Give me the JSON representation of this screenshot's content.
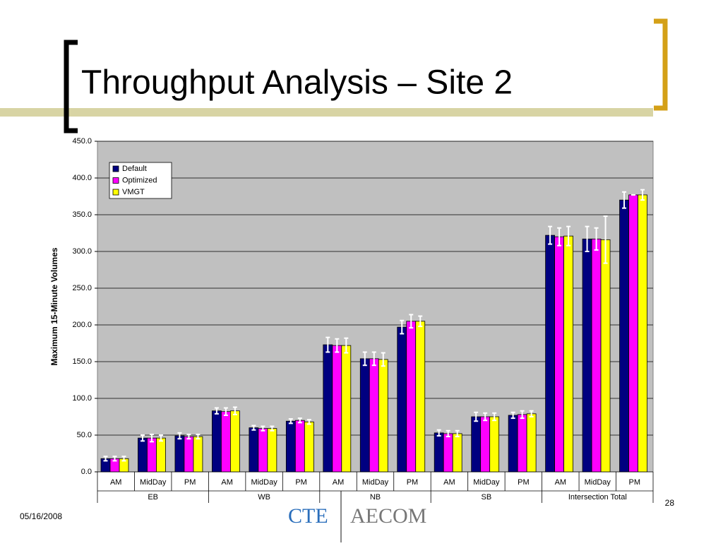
{
  "header": {
    "title": "Throughput Analysis – Site 2"
  },
  "chart_data": {
    "type": "bar",
    "y_label": "Maximum 15-Minute Volumes",
    "category_groups": [
      "EB",
      "WB",
      "NB",
      "SB",
      "Intersection Total"
    ],
    "categories": [
      "AM",
      "MidDay",
      "PM",
      "AM",
      "MidDay",
      "PM",
      "AM",
      "MidDay",
      "PM",
      "AM",
      "MidDay",
      "PM",
      "AM",
      "MidDay",
      "PM"
    ],
    "series": [
      {
        "name": "Default",
        "color": "#000080",
        "values": [
          18,
          46,
          49,
          83,
          60,
          69,
          173,
          154,
          197,
          53,
          75,
          77,
          322,
          317,
          370
        ],
        "errors": [
          3,
          4,
          4,
          4,
          3,
          3,
          10,
          9,
          9,
          4,
          6,
          4,
          12,
          17,
          11
        ]
      },
      {
        "name": "Optimized",
        "color": "#ff00ff",
        "values": [
          18,
          46,
          48,
          82,
          59,
          70,
          172,
          154,
          205,
          52,
          75,
          78,
          320,
          317,
          377
        ],
        "errors": [
          3,
          5,
          3,
          5,
          3,
          3,
          9,
          9,
          9,
          4,
          5,
          5,
          12,
          15,
          0
        ]
      },
      {
        "name": "VMGT",
        "color": "#ffff00",
        "values": [
          18,
          46,
          48,
          83,
          59,
          68,
          172,
          153,
          205,
          52,
          75,
          79,
          321,
          316,
          377
        ],
        "errors": [
          3,
          4,
          3,
          5,
          3,
          3,
          10,
          9,
          7,
          4,
          5,
          4,
          13,
          32,
          7
        ]
      }
    ],
    "ylim": [
      0,
      450
    ],
    "yticks": [
      {
        "value": 0,
        "label": "0.0"
      },
      {
        "value": 50,
        "label": "50.0"
      },
      {
        "value": 100,
        "label": "100.0"
      },
      {
        "value": 150,
        "label": "150.0"
      },
      {
        "value": 200,
        "label": "200.0"
      },
      {
        "value": 250,
        "label": "250.0"
      },
      {
        "value": 300,
        "label": "300.0"
      },
      {
        "value": 350,
        "label": "350.0"
      },
      {
        "value": 400,
        "label": "400.0"
      },
      {
        "value": 450,
        "label": "450.0"
      }
    ],
    "grid": true,
    "legend": "upper left",
    "background": "#c0c0c0"
  },
  "footer": {
    "date": "05/16/2008",
    "page": "28",
    "logo_left": "CTE",
    "logo_right": "AECOM"
  }
}
